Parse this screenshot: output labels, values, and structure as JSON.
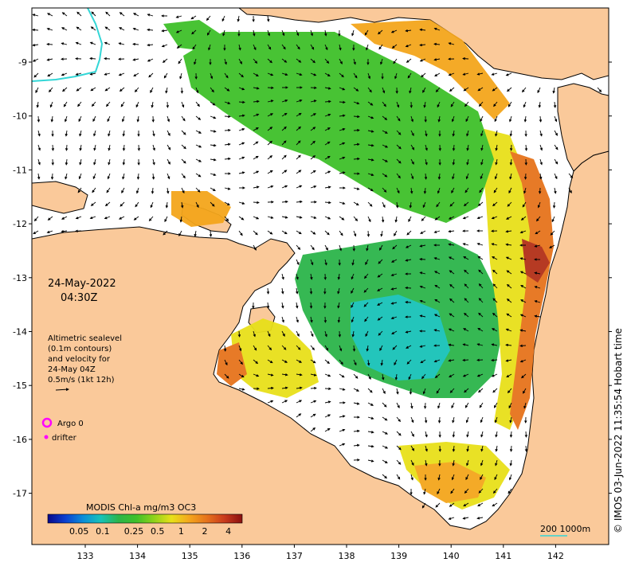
{
  "map": {
    "date": "24-May-2022",
    "time": "04:30Z",
    "x_ticks": [
      "133",
      "134",
      "135",
      "136",
      "137",
      "138",
      "139",
      "140",
      "141",
      "142"
    ],
    "y_ticks": [
      "-9",
      "-10",
      "-11",
      "-12",
      "-13",
      "-14",
      "-15",
      "-16",
      "-17"
    ],
    "legend_lines": [
      "Altimetric sealevel",
      "(0.1m contours)",
      "and velocity for",
      "24-May 04Z",
      "0.5m/s (1kt 12h)"
    ],
    "argo_label": "Argo 0",
    "drifter_label": "drifter",
    "colorbar_title": "MODIS Chl-a mg/m3 OC3",
    "colorbar_ticks": [
      "0.05",
      "0.1",
      "0.25",
      "0.5",
      "1",
      "2",
      "4"
    ],
    "scale_bar_label": "200  1000m",
    "credit": "© IMOS 03-Jun-2022 11:35:54 Hobart time",
    "colors": {
      "land": "#fac99a",
      "coast": "#000000",
      "contour": "#33d6d6",
      "argo": "#ff00ff",
      "drifter": "#ff00ff",
      "ocean": "#ffffff"
    },
    "colorbar_colors": [
      "#08088a",
      "#0a3fd0",
      "#0b8ed8",
      "#18c2b8",
      "#2cb54a",
      "#3fc02a",
      "#8ed21a",
      "#e8e01a",
      "#f4a61c",
      "#e6731c",
      "#c93a1c",
      "#8a1010"
    ]
  }
}
